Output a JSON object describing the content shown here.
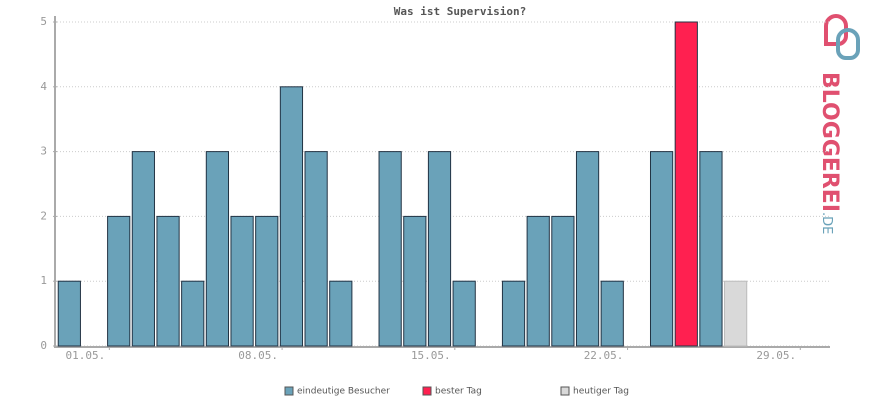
{
  "chart_data": {
    "type": "bar",
    "title": "Was ist Supervision?",
    "categories": [
      "01.05.",
      null,
      null,
      null,
      null,
      null,
      null,
      "08.05.",
      null,
      null,
      null,
      null,
      null,
      null,
      "15.05.",
      null,
      null,
      null,
      null,
      null,
      null,
      "22.05.",
      null,
      null,
      null,
      null,
      null,
      null,
      "29.05.",
      null,
      null
    ],
    "series": [
      {
        "name": "eindeutige Besucher",
        "color": "#6aa2b9",
        "values": [
          1,
          0,
          2,
          3,
          2,
          1,
          3,
          2,
          2,
          4,
          3,
          1,
          0,
          3,
          2,
          3,
          1,
          0,
          1,
          2,
          2,
          3,
          1,
          0,
          3,
          null,
          3,
          null,
          0,
          0,
          0
        ]
      },
      {
        "name": "bester Tag",
        "color": "#ff2050",
        "values": [
          null,
          null,
          null,
          null,
          null,
          null,
          null,
          null,
          null,
          null,
          null,
          null,
          null,
          null,
          null,
          null,
          null,
          null,
          null,
          null,
          null,
          null,
          null,
          null,
          null,
          5,
          null,
          null,
          null,
          null,
          null
        ]
      },
      {
        "name": "heutiger Tag",
        "color": "#d9d9d9",
        "values": [
          null,
          null,
          null,
          null,
          null,
          null,
          null,
          null,
          null,
          null,
          null,
          null,
          null,
          null,
          null,
          null,
          null,
          null,
          null,
          null,
          null,
          null,
          null,
          null,
          null,
          null,
          null,
          1,
          null,
          null,
          null
        ]
      }
    ],
    "ylim": [
      0,
      5
    ],
    "yticks": [
      0,
      1,
      2,
      3,
      4,
      5
    ],
    "grid": true
  },
  "logo": {
    "text": "BLOGGEREI",
    "suffix": ".DE"
  }
}
